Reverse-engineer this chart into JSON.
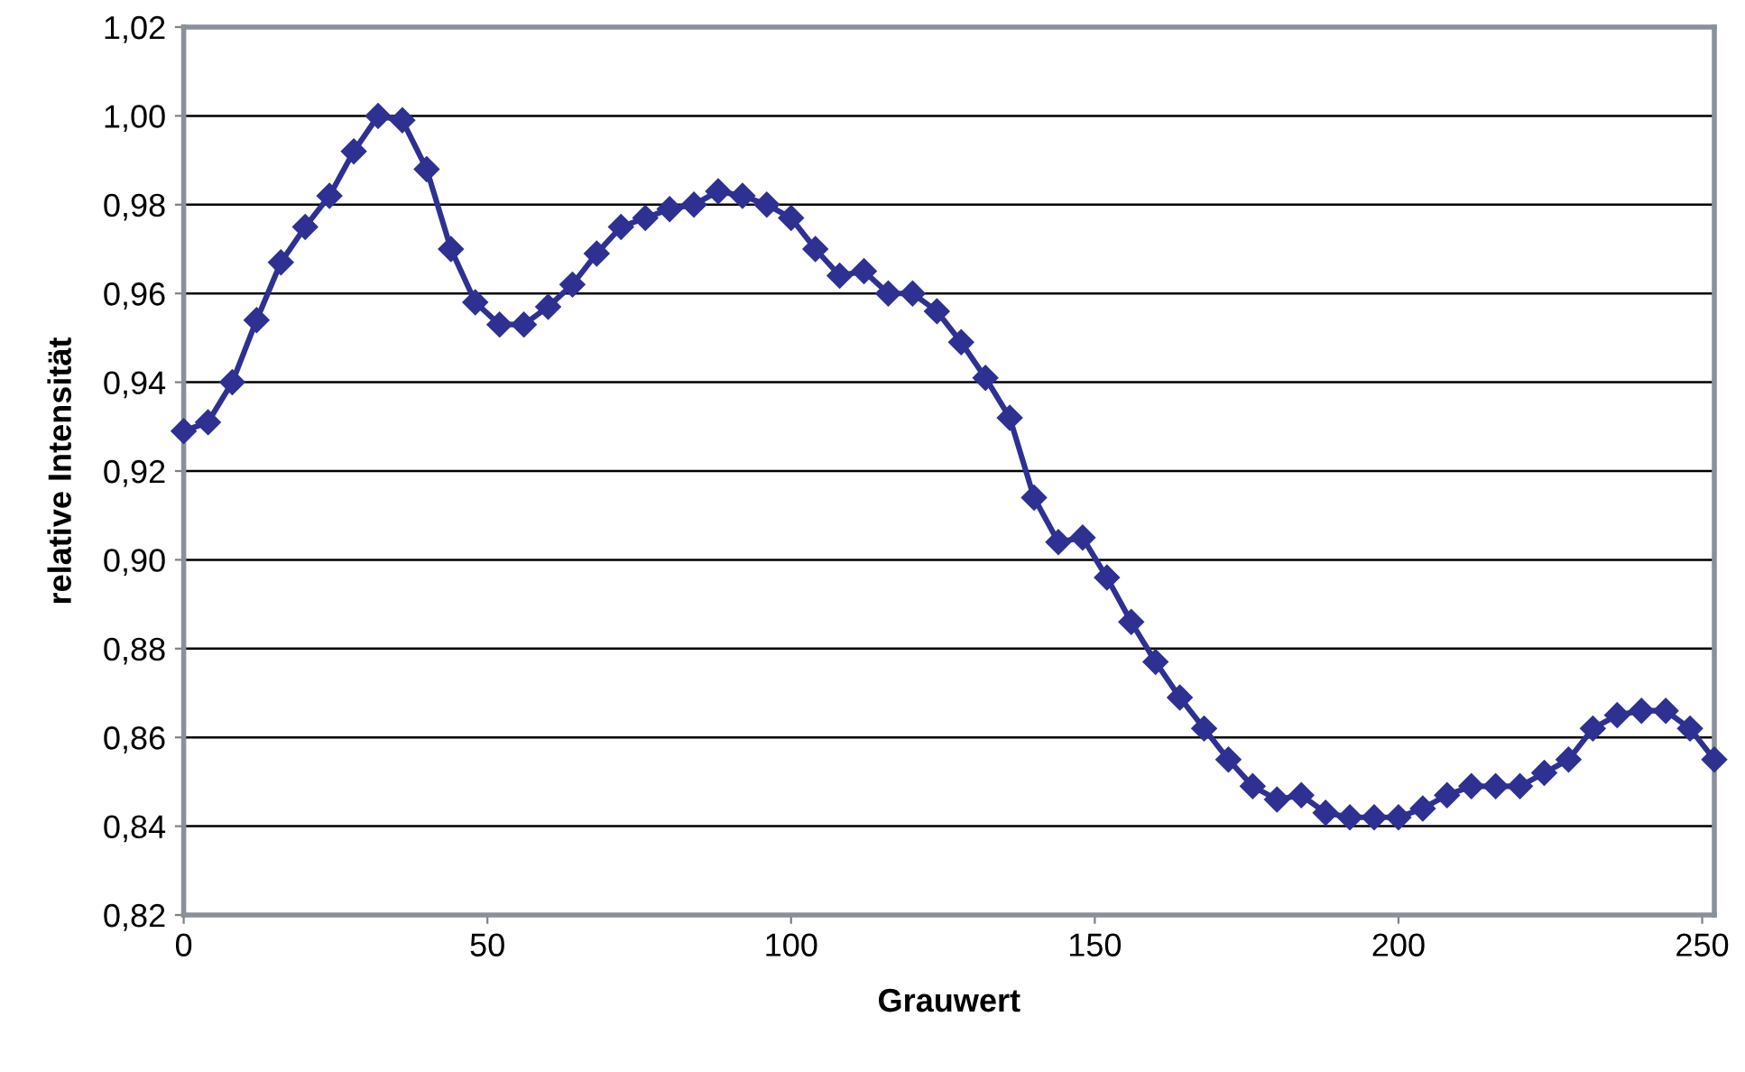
{
  "chart_data": {
    "type": "line",
    "xlabel": "Grauwert",
    "ylabel": "relative Intensität",
    "x": [
      0,
      4,
      8,
      12,
      16,
      20,
      24,
      28,
      32,
      36,
      40,
      44,
      48,
      52,
      56,
      60,
      64,
      68,
      72,
      76,
      80,
      84,
      88,
      92,
      96,
      100,
      104,
      108,
      112,
      116,
      120,
      124,
      128,
      132,
      136,
      140,
      144,
      148,
      152,
      156,
      160,
      164,
      168,
      172,
      176,
      180,
      184,
      188,
      192,
      196,
      200,
      204,
      208,
      212,
      216,
      220,
      224,
      228,
      232,
      236,
      240,
      244,
      248,
      252
    ],
    "series": [
      {
        "color": "#2e3192",
        "values": [
          0.929,
          0.931,
          0.94,
          0.954,
          0.967,
          0.975,
          0.982,
          0.992,
          1.0,
          0.999,
          0.988,
          0.97,
          0.958,
          0.953,
          0.953,
          0.957,
          0.962,
          0.969,
          0.975,
          0.977,
          0.979,
          0.98,
          0.983,
          0.982,
          0.98,
          0.977,
          0.97,
          0.964,
          0.965,
          0.96,
          0.96,
          0.956,
          0.949,
          0.941,
          0.932,
          0.914,
          0.904,
          0.905,
          0.896,
          0.886,
          0.877,
          0.869,
          0.862,
          0.855,
          0.849,
          0.846,
          0.847,
          0.843,
          0.842,
          0.842,
          0.842,
          0.844,
          0.847,
          0.849,
          0.849,
          0.849,
          0.852,
          0.855,
          0.862,
          0.865,
          0.866,
          0.866,
          0.862,
          0.855
        ]
      }
    ],
    "xlim": [
      0,
      252
    ],
    "xticks": [
      0,
      50,
      100,
      150,
      200,
      250
    ],
    "ylim": [
      0.82,
      1.02
    ],
    "yticks": [
      {
        "value": 0.82,
        "label": "0,82"
      },
      {
        "value": 0.84,
        "label": "0,84"
      },
      {
        "value": 0.86,
        "label": "0,86"
      },
      {
        "value": 0.88,
        "label": "0,88"
      },
      {
        "value": 0.9,
        "label": "0,90"
      },
      {
        "value": 0.92,
        "label": "0,92"
      },
      {
        "value": 0.94,
        "label": "0,94"
      },
      {
        "value": 0.96,
        "label": "0,96"
      },
      {
        "value": 0.98,
        "label": "0,98"
      },
      {
        "value": 1.0,
        "label": "1,00"
      },
      {
        "value": 1.02,
        "label": "1,02"
      }
    ],
    "grid": "y",
    "marker": "diamond",
    "line_style": "solid"
  }
}
